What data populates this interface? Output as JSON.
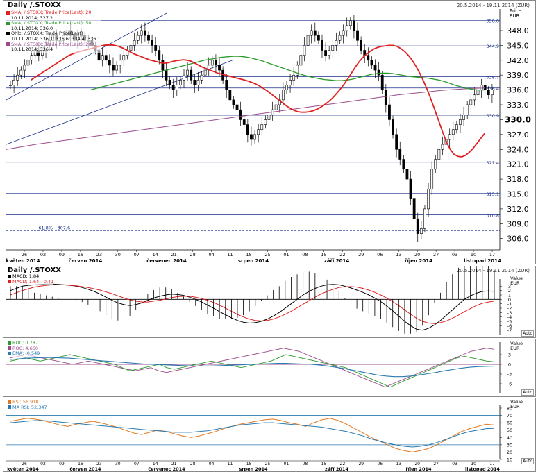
{
  "main": {
    "title": "Daily /.STOXX",
    "range": "20.5.2014 - 19.11.2014 (ZUR)",
    "axis_caption_1": "Price",
    "axis_caption_2": "EUR",
    "legend": [
      {
        "label": "SMA; /.STOXX; Trade Price(Last); 20",
        "value": "10.11.2014; 327.2",
        "color": "#e02020"
      },
      {
        "label": "SMA; /.STOXX; Trade Price(Last); 50",
        "value": "10.11.2014; 336.0",
        "color": "#2a9a2a"
      },
      {
        "label": "Ohlc; /.STOXX; Trade Price(Last)",
        "value": "10.11.2014; 336.1; 336.6; 334.4; 336.1",
        "color": "#000000"
      },
      {
        "label": "SMA; /.STOXX; Trade Price(Last); 200",
        "value": "10.11.2014; 336.4",
        "color": "#9a4c8a"
      }
    ],
    "fib_label": "-61.8% - 307.6"
  },
  "macd": {
    "title": "Daily /.STOXX",
    "range": "20.5.2014 - 19.11.2014 (ZUR)",
    "axis_caption_1": "Value",
    "axis_caption_2": "EUR",
    "legend": [
      {
        "label": "MACD; 1.84",
        "color": "#000000"
      },
      {
        "label": "MACD; 1.64; -0.41",
        "color": "#e02020"
      }
    ],
    "scale_label": "Auto"
  },
  "roc": {
    "axis_caption_1": "Value",
    "axis_caption_2": "EUR",
    "legend": [
      {
        "label": "ROC; 0.787",
        "color": "#2a9a2a"
      },
      {
        "label": "ROC; 4.660",
        "color": "#9a4c8a"
      },
      {
        "label": "EMA; -0.549",
        "color": "#2a7ab0"
      }
    ],
    "scale_label": "Auto"
  },
  "rsi": {
    "axis_caption_1": "Value",
    "axis_caption_2": "EUR",
    "legend": [
      {
        "label": "RSI; 56.918",
        "color": "#e07820"
      },
      {
        "label": "MA RSI; 52.347",
        "color": "#2a7ab0"
      }
    ],
    "scale_label": "Auto"
  },
  "xaxis": {
    "day_ticks": [
      "26",
      "02",
      "09",
      "16",
      "23",
      "30",
      "07",
      "14",
      "21",
      "28",
      "04",
      "11",
      "18",
      "25",
      "01",
      "08",
      "15",
      "22",
      "29",
      "06",
      "13",
      "20",
      "27",
      "03",
      "10",
      "17"
    ],
    "months": [
      "květen 2014",
      "červen 2014",
      "červenec 2014",
      "srpen 2014",
      "září 2014",
      "říjen 2014",
      "listopad 2014"
    ]
  },
  "chart_data": [
    {
      "type": "candlestick",
      "title": "Daily /.STOXX",
      "ylabel": "Price EUR",
      "ylim": [
        304,
        351.5
      ],
      "yticks": [
        306,
        309,
        312,
        315,
        318,
        321,
        324,
        327,
        330,
        333,
        336,
        339,
        342,
        345,
        348
      ],
      "price_lines": [
        {
          "value": 350.0,
          "label": "350.0"
        },
        {
          "value": 344.9,
          "label": "344.9"
        },
        {
          "value": 338.7,
          "label": "338.7"
        },
        {
          "value": 336.4,
          "label": "336.4"
        },
        {
          "value": 330.9,
          "label": "330.9"
        },
        {
          "value": 321.4,
          "label": "321.4"
        },
        {
          "value": 315.1,
          "label": "315.1"
        },
        {
          "value": 310.8,
          "label": "310.8"
        }
      ],
      "fib_line": {
        "value": 307.6,
        "label": "-61.8% - 307.6"
      },
      "close": [
        337,
        338,
        339,
        340,
        341,
        342,
        343,
        344,
        343,
        344,
        345,
        346,
        347,
        346,
        346,
        347,
        348,
        347,
        346,
        347,
        347,
        346,
        346,
        345,
        344,
        342,
        343,
        342,
        341,
        340,
        341,
        342,
        343,
        344,
        345,
        346,
        347,
        348,
        347,
        346,
        345,
        344,
        342,
        340,
        338,
        337,
        336,
        337,
        338,
        339,
        340,
        338,
        337,
        338,
        339,
        340,
        341,
        342,
        341,
        340,
        338,
        336,
        334,
        333,
        332,
        330,
        329,
        327,
        326,
        327,
        328,
        329,
        330,
        331,
        332,
        333,
        334,
        336,
        337,
        338,
        339,
        341,
        343,
        345,
        347,
        348,
        347,
        346,
        344,
        343,
        344,
        345,
        346,
        347,
        348,
        349,
        350,
        348,
        346,
        344,
        343,
        342,
        341,
        340,
        339,
        336,
        333,
        330,
        327,
        324,
        322,
        320,
        318,
        314,
        310,
        307,
        308,
        312,
        316,
        320,
        322,
        324,
        325,
        326,
        327,
        328,
        329,
        330,
        331,
        333,
        334,
        335,
        336,
        337,
        336,
        335,
        336
      ],
      "series": [
        {
          "name": "SMA 20",
          "last": 327.2,
          "values": [
            338,
            338.5,
            339,
            339.5,
            340,
            340.5,
            341,
            341.5,
            342,
            342.5,
            343,
            343.3,
            343.6,
            343.8,
            344,
            344.2,
            344.4,
            344.6,
            344.8,
            345,
            345.1,
            345.1,
            345,
            344.8,
            344.5,
            344.1,
            343.7,
            343.3,
            343,
            342.7,
            342.4,
            342.1,
            341.9,
            341.7,
            341.5,
            341.4,
            341.5,
            341.7,
            341.9,
            342,
            342.1,
            342,
            341.8,
            341.4,
            341,
            340.6,
            340.3,
            340,
            339.7,
            339.4,
            339.2,
            339,
            338.8,
            338.6,
            338.4,
            338.2,
            338,
            337.8,
            337.5,
            337.2,
            336.8,
            336.3,
            335.8,
            335.2,
            334.6,
            334,
            333.4,
            332.8,
            332.3,
            331.9,
            331.6,
            331.5,
            331.5,
            331.6,
            331.8,
            332.1,
            332.5,
            333,
            333.6,
            334.3,
            335.1,
            336,
            337,
            338.1,
            339.3,
            340.5,
            341.6,
            342.5,
            343.2,
            343.8,
            344.3,
            344.6,
            344.8,
            344.9,
            345,
            345,
            344.8,
            344.4,
            343.8,
            343,
            342,
            340.8,
            339.4,
            337.8,
            336,
            334,
            331.9,
            329.7,
            327.5,
            325.5,
            324,
            323,
            322.6,
            322.5,
            322.8,
            323.4,
            324.2,
            325.2,
            326.2,
            327.2
          ]
        },
        {
          "name": "SMA 50",
          "last": 336.0,
          "values": [
            336,
            336.3,
            336.6,
            336.9,
            337.2,
            337.5,
            337.8,
            338.1,
            338.4,
            338.7,
            339,
            339.3,
            339.6,
            339.9,
            340.2,
            340.5,
            340.8,
            341.1,
            341.4,
            341.7,
            342,
            342.2,
            342.4,
            342.6,
            342.7,
            342.8,
            342.8,
            342.7,
            342.5,
            342.2,
            341.9,
            341.5,
            341.1,
            340.7,
            340.3,
            339.9,
            339.5,
            339.1,
            338.8,
            338.5,
            338.3,
            338.1,
            338,
            337.9,
            337.9,
            338,
            338.2,
            338.5,
            338.8,
            339.1,
            339.3,
            339.4,
            339.4,
            339.3,
            339.1,
            338.9,
            338.7,
            338.6,
            338.5,
            338.4,
            338.2,
            338,
            337.7,
            337.3,
            336.9,
            336.6,
            336.3,
            336.1,
            336,
            336
          ]
        },
        {
          "name": "SMA 200",
          "last": 336.4,
          "values": [
            324,
            324.5,
            325,
            325.4,
            325.8,
            326.2,
            326.6,
            327,
            327.4,
            327.8,
            328.2,
            328.6,
            329,
            329.4,
            329.8,
            330.2,
            330.6,
            331,
            331.4,
            331.8,
            332.2,
            332.6,
            333,
            333.4,
            333.8,
            334.2,
            334.6,
            335,
            335.3,
            335.6,
            335.9,
            336.1,
            336.3,
            336.4
          ]
        },
        {
          "name": "MACD",
          "last": 1.84,
          "values": [
            2,
            2.5,
            3,
            3.2,
            3.3,
            3.4,
            3.5,
            3.5,
            3.4,
            3.3,
            3.2,
            3,
            2.7,
            2.3,
            1.8,
            1.2,
            0.5,
            -0.2,
            -0.8,
            -1.2,
            -1.4,
            -1.2,
            -0.8,
            -0.2,
            0.3,
            0.7,
            1,
            1.2,
            1.1,
            0.9,
            0.5,
            0,
            -0.6,
            -1.3,
            -2,
            -2.8,
            -3.5,
            -4.2,
            -4.8,
            -5.2,
            -5.4,
            -5.3,
            -5,
            -4.5,
            -3.8,
            -3,
            -2,
            -1,
            0,
            1,
            1.8,
            2.5,
            3,
            3.3,
            3.4,
            3.3,
            3,
            2.6,
            2.1,
            1.6,
            1,
            0.3,
            -0.5,
            -1.5,
            -2.6,
            -3.8,
            -5,
            -6,
            -6.8,
            -7,
            -6.6,
            -5.8,
            -4.8,
            -3.6,
            -2.4,
            -1.2,
            0,
            0.8,
            1.4,
            1.8,
            1.9,
            1.84
          ]
        },
        {
          "name": "MACD signal",
          "last": -0.41,
          "values": [
            1,
            1.5,
            2,
            2.4,
            2.8,
            3,
            3.2,
            3.3,
            3.3,
            3.3,
            3.2,
            3.1,
            2.9,
            2.7,
            2.4,
            2.1,
            1.7,
            1.3,
            0.8,
            0.3,
            -0.1,
            -0.4,
            -0.6,
            -0.6,
            -0.4,
            -0.2,
            0.1,
            0.4,
            0.6,
            0.7,
            0.7,
            0.5,
            0.2,
            -0.2,
            -0.7,
            -1.3,
            -2,
            -2.7,
            -3.4,
            -4,
            -4.5,
            -4.8,
            -4.9,
            -4.8,
            -4.5,
            -4,
            -3.4,
            -2.7,
            -1.9,
            -1.1,
            -0.3,
            0.5,
            1.2,
            1.8,
            2.3,
            2.7,
            2.9,
            2.9,
            2.8,
            2.5,
            2.1,
            1.6,
            1,
            0.3,
            -0.5,
            -1.4,
            -2.4,
            -3.4,
            -4.3,
            -5,
            -5.4,
            -5.5,
            -5.3,
            -4.9,
            -4.3,
            -3.6,
            -2.8,
            -2.1,
            -1.4,
            -0.9,
            -0.6,
            -0.41
          ]
        },
        {
          "name": "ROC green",
          "last": 0.787,
          "values": [
            1,
            1.5,
            2,
            1.5,
            1,
            1.5,
            2,
            2.5,
            3,
            2.5,
            2,
            1.5,
            1,
            0.5,
            0,
            -1,
            -2,
            -1.5,
            -1,
            -0.5,
            0,
            -1,
            -1.5,
            -1,
            -0.5,
            0,
            0.5,
            1,
            0.5,
            0,
            -0.5,
            -1,
            -0.5,
            0,
            0.5,
            1,
            2,
            3,
            2.5,
            2,
            1.5,
            1,
            0.5,
            0,
            -0.5,
            -1,
            -2,
            -3,
            -4,
            -5,
            -6,
            -7,
            -6,
            -5,
            -4,
            -3,
            -2,
            -1,
            0,
            1,
            2,
            2.5,
            2,
            1.5,
            1,
            0.787
          ]
        },
        {
          "name": "ROC purple",
          "last": 4.66,
          "values": [
            2,
            2.5,
            3,
            2.5,
            2,
            1.5,
            1,
            0.5,
            0,
            0.5,
            1,
            0.5,
            0,
            -0.5,
            -1,
            -1.5,
            -2,
            -1.5,
            -1,
            -2,
            -2.5,
            -2,
            -1.5,
            -1,
            -0.5,
            0,
            0.5,
            1,
            1.5,
            2,
            2.5,
            3,
            3.5,
            4,
            4.5,
            5,
            4.5,
            4,
            3,
            2,
            1,
            0,
            -1,
            -2,
            -3,
            -4,
            -5,
            -6,
            -7,
            -6,
            -5,
            -4,
            -3,
            -2,
            -1,
            0,
            1,
            2,
            3,
            4,
            4.5,
            5,
            4.66
          ]
        },
        {
          "name": "EMA",
          "last": -0.549,
          "values": [
            1.5,
            1.7,
            1.9,
            2,
            2.1,
            2.1,
            2,
            1.9,
            1.7,
            1.5,
            1.3,
            1.1,
            0.9,
            0.7,
            0.5,
            0.3,
            0.1,
            0,
            -0.1,
            -0.2,
            -0.3,
            -0.4,
            -0.5,
            -0.5,
            -0.5,
            -0.4,
            -0.3,
            -0.2,
            -0.1,
            0,
            0.1,
            0.2,
            0.3,
            0.3,
            0.2,
            0.1,
            0,
            -0.2,
            -0.5,
            -0.9,
            -1.3,
            -1.8,
            -2.3,
            -2.8,
            -3.3,
            -3.6,
            -3.8,
            -3.8,
            -3.6,
            -3.3,
            -2.9,
            -2.5,
            -2,
            -1.6,
            -1.2,
            -0.9,
            -0.7,
            -0.6,
            -0.549
          ]
        },
        {
          "name": "RSI",
          "last": 56.918,
          "values": [
            62,
            64,
            66,
            65,
            63,
            60,
            57,
            55,
            58,
            60,
            62,
            60,
            57,
            54,
            50,
            46,
            44,
            47,
            50,
            48,
            45,
            42,
            40,
            42,
            45,
            48,
            52,
            55,
            58,
            60,
            62,
            64,
            65,
            63,
            60,
            58,
            55,
            60,
            64,
            66,
            63,
            58,
            52,
            46,
            40,
            35,
            30,
            25,
            22,
            20,
            22,
            25,
            30,
            36,
            42,
            48,
            52,
            55,
            58,
            56.918
          ]
        },
        {
          "name": "MA RSI",
          "last": 52.347,
          "values": [
            60,
            61,
            62,
            63,
            63,
            62,
            61,
            60,
            59,
            58,
            57,
            56,
            55,
            54,
            53,
            52,
            51,
            50,
            49,
            48,
            47,
            47,
            47,
            48,
            49,
            51,
            53,
            55,
            57,
            58,
            59,
            60,
            60,
            59,
            58,
            57,
            56,
            55,
            54,
            52,
            50,
            48,
            45,
            42,
            38,
            35,
            32,
            30,
            28,
            27,
            28,
            30,
            33,
            37,
            41,
            45,
            48,
            50,
            52,
            52.347
          ]
        }
      ]
    }
  ]
}
